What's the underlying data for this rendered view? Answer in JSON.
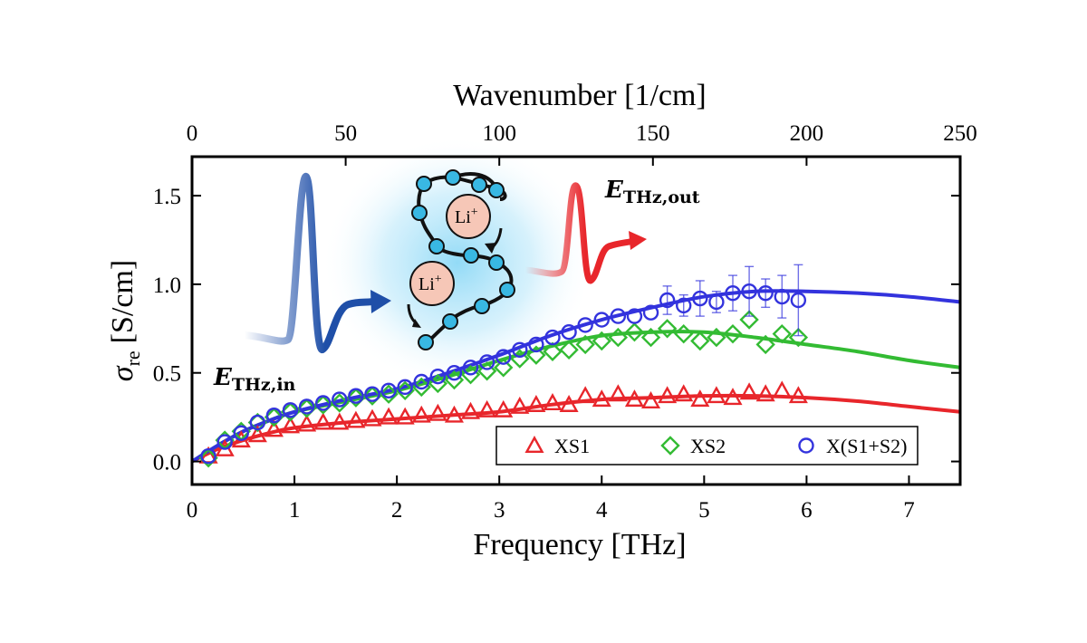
{
  "chart_data": {
    "type": "scatter",
    "x_label": "Frequency [THz]",
    "x_top_label": "Wavenumber [1/cm]",
    "y_label_main": "σ",
    "y_label_sub": "re",
    "y_label_unit": "[S/cm]",
    "xlim": [
      0,
      7.5
    ],
    "ylim": [
      -0.13,
      1.72
    ],
    "x_top_lim": [
      0,
      250
    ],
    "x_ticks": [
      0,
      1,
      2,
      3,
      4,
      5,
      6,
      7
    ],
    "x_top_ticks": [
      0,
      50,
      100,
      150,
      200,
      250
    ],
    "y_ticks": [
      0.0,
      0.5,
      1.0,
      1.5
    ],
    "legend_position": "bottom-right",
    "series": [
      {
        "name": "XS1",
        "color": "#e8262b",
        "marker": "triangle",
        "x": [
          0.16,
          0.32,
          0.48,
          0.64,
          0.8,
          0.96,
          1.12,
          1.28,
          1.44,
          1.6,
          1.76,
          1.92,
          2.08,
          2.24,
          2.4,
          2.56,
          2.72,
          2.88,
          3.04,
          3.2,
          3.36,
          3.52,
          3.68,
          3.84,
          4.0,
          4.16,
          4.32,
          4.48,
          4.64,
          4.8,
          4.96,
          5.12,
          5.28,
          5.44,
          5.6,
          5.76,
          5.92
        ],
        "y": [
          0.03,
          0.07,
          0.12,
          0.15,
          0.18,
          0.2,
          0.21,
          0.22,
          0.22,
          0.23,
          0.24,
          0.25,
          0.25,
          0.26,
          0.27,
          0.26,
          0.28,
          0.29,
          0.29,
          0.31,
          0.32,
          0.33,
          0.32,
          0.37,
          0.35,
          0.38,
          0.35,
          0.34,
          0.37,
          0.38,
          0.35,
          0.37,
          0.36,
          0.39,
          0.38,
          0.4,
          0.37
        ]
      },
      {
        "name": "XS2",
        "color": "#33bb33",
        "marker": "diamond",
        "x": [
          0.16,
          0.32,
          0.48,
          0.64,
          0.8,
          0.96,
          1.12,
          1.28,
          1.44,
          1.6,
          1.76,
          1.92,
          2.08,
          2.24,
          2.4,
          2.56,
          2.72,
          2.88,
          3.04,
          3.2,
          3.36,
          3.52,
          3.68,
          3.84,
          4.0,
          4.16,
          4.32,
          4.48,
          4.64,
          4.8,
          4.96,
          5.12,
          5.28,
          5.44,
          5.6,
          5.76,
          5.92
        ],
        "y": [
          0.02,
          0.12,
          0.17,
          0.22,
          0.25,
          0.28,
          0.3,
          0.32,
          0.33,
          0.36,
          0.37,
          0.38,
          0.4,
          0.42,
          0.44,
          0.46,
          0.49,
          0.51,
          0.53,
          0.58,
          0.6,
          0.62,
          0.63,
          0.66,
          0.68,
          0.7,
          0.73,
          0.7,
          0.75,
          0.72,
          0.68,
          0.7,
          0.72,
          0.8,
          0.66,
          0.72,
          0.7
        ]
      },
      {
        "name": "X(S1+S2)",
        "color": "#3333dd",
        "marker": "circle",
        "x": [
          0.16,
          0.32,
          0.48,
          0.64,
          0.8,
          0.96,
          1.12,
          1.28,
          1.44,
          1.6,
          1.76,
          1.92,
          2.08,
          2.24,
          2.4,
          2.56,
          2.72,
          2.88,
          3.04,
          3.2,
          3.36,
          3.52,
          3.68,
          3.84,
          4.0,
          4.16,
          4.32,
          4.48,
          4.64,
          4.8,
          4.96,
          5.12,
          5.28,
          5.44,
          5.6,
          5.76,
          5.92
        ],
        "y": [
          0.03,
          0.11,
          0.16,
          0.22,
          0.26,
          0.29,
          0.31,
          0.33,
          0.35,
          0.37,
          0.38,
          0.4,
          0.42,
          0.45,
          0.48,
          0.5,
          0.53,
          0.56,
          0.59,
          0.63,
          0.66,
          0.7,
          0.73,
          0.77,
          0.8,
          0.82,
          0.82,
          0.84,
          0.91,
          0.88,
          0.92,
          0.9,
          0.95,
          0.96,
          0.95,
          0.93,
          0.91
        ],
        "error": [
          0,
          0,
          0,
          0,
          0,
          0,
          0,
          0,
          0,
          0,
          0,
          0,
          0,
          0,
          0,
          0,
          0,
          0,
          0,
          0,
          0,
          0,
          0,
          0,
          0,
          0,
          0,
          0,
          0.08,
          0.06,
          0.1,
          0.06,
          0.1,
          0.14,
          0.08,
          0.12,
          0.2
        ]
      }
    ],
    "fits": [
      {
        "name": "XS1 fit",
        "color": "#e8262b",
        "x": [
          0,
          0.25,
          0.5,
          0.75,
          1.0,
          1.5,
          2.0,
          2.5,
          3.0,
          3.5,
          4.0,
          4.5,
          5.0,
          5.5,
          6.0,
          6.5,
          7.0,
          7.5
        ],
        "y": [
          0,
          0.07,
          0.12,
          0.16,
          0.19,
          0.22,
          0.24,
          0.26,
          0.28,
          0.32,
          0.35,
          0.36,
          0.37,
          0.37,
          0.36,
          0.34,
          0.31,
          0.28
        ]
      },
      {
        "name": "XS2 fit",
        "color": "#33bb33",
        "x": [
          0,
          0.25,
          0.5,
          0.75,
          1.0,
          1.5,
          2.0,
          2.5,
          3.0,
          3.5,
          4.0,
          4.5,
          5.0,
          5.5,
          6.0,
          6.5,
          7.0,
          7.5
        ],
        "y": [
          0,
          0.09,
          0.17,
          0.23,
          0.28,
          0.34,
          0.4,
          0.48,
          0.57,
          0.65,
          0.71,
          0.73,
          0.73,
          0.7,
          0.66,
          0.62,
          0.57,
          0.53
        ]
      },
      {
        "name": "X(S1+S2) fit",
        "color": "#3333dd",
        "x": [
          0,
          0.25,
          0.5,
          0.75,
          1.0,
          1.5,
          2.0,
          2.5,
          3.0,
          3.5,
          4.0,
          4.5,
          5.0,
          5.5,
          6.0,
          6.5,
          7.0,
          7.5
        ],
        "y": [
          0,
          0.09,
          0.17,
          0.23,
          0.28,
          0.35,
          0.41,
          0.5,
          0.6,
          0.71,
          0.8,
          0.87,
          0.93,
          0.96,
          0.96,
          0.95,
          0.93,
          0.9
        ]
      }
    ],
    "annotations": {
      "e_in_main": "E",
      "e_in_sub": "THz,in",
      "e_out_main": "E",
      "e_out_sub": "THz,out",
      "li_base": "Li",
      "li_sup": "+"
    }
  }
}
